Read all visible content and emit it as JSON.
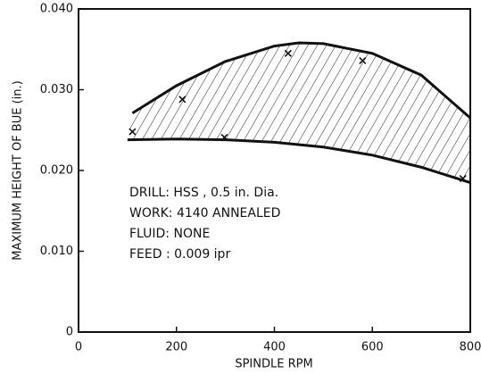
{
  "chart_data": {
    "type": "line",
    "xlabel": "SPINDLE RPM",
    "ylabel": "MAXIMUM HEIGHT OF BUE (in.)",
    "xlim": [
      0,
      800
    ],
    "xticks": [
      0,
      200,
      400,
      600,
      800
    ],
    "ylim": [
      0,
      0.04
    ],
    "yticks": [
      0,
      {
        "value": 0.01,
        "label": "0.010"
      },
      {
        "value": 0.02,
        "label": "0.020"
      },
      {
        "value": 0.03,
        "label": "0.030"
      },
      {
        "value": 0.04,
        "label": "0.040"
      }
    ],
    "color": "#111111",
    "series": [
      {
        "x": [
          110,
          200,
          300,
          400,
          450,
          500,
          600,
          700,
          800
        ],
        "values": [
          0.0271,
          0.0305,
          0.0335,
          0.0354,
          0.0358,
          0.0357,
          0.0345,
          0.0318,
          0.0265
        ]
      },
      {
        "x": [
          100,
          200,
          300,
          400,
          500,
          600,
          700,
          800
        ],
        "values": [
          0.0238,
          0.0239,
          0.0238,
          0.0235,
          0.0229,
          0.0219,
          0.0204,
          0.0185
        ]
      }
    ],
    "points": {
      "x": [
        110,
        212,
        298,
        428,
        580,
        785
      ],
      "values": [
        0.0248,
        0.0288,
        0.0241,
        0.0345,
        0.0336,
        0.019
      ]
    },
    "annotations": [
      "DRILL: HSS , 0.5 in. Dia.",
      "WORK: 4140 ANNEALED",
      "FLUID: NONE",
      "FEED : 0.009 ipr"
    ]
  }
}
